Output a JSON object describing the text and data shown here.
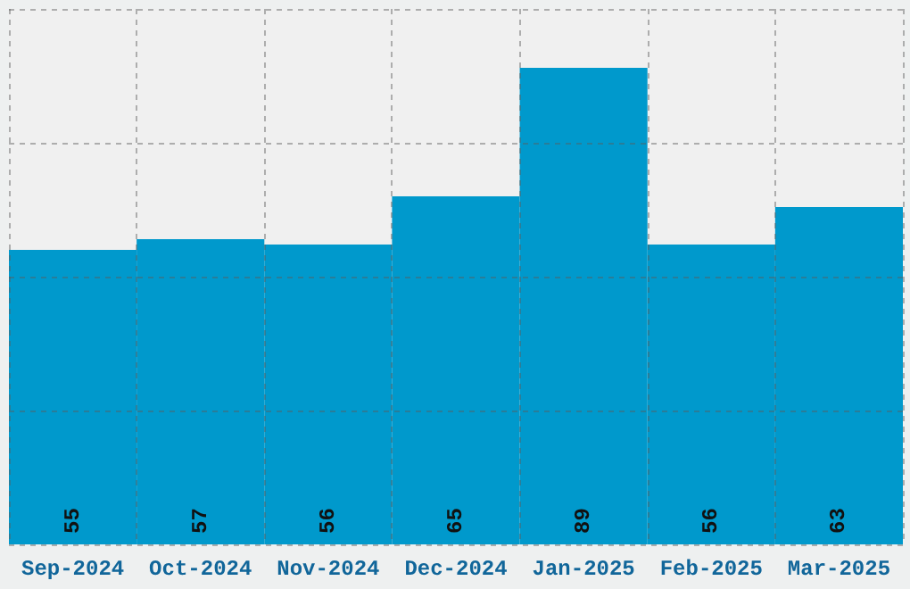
{
  "chart_data": {
    "type": "bar",
    "categories": [
      "Sep-2024",
      "Oct-2024",
      "Nov-2024",
      "Dec-2024",
      "Jan-2025",
      "Feb-2025",
      "Mar-2025"
    ],
    "values": [
      55,
      57,
      56,
      65,
      89,
      56,
      63
    ],
    "color": "#0099cc",
    "ylim": [
      0,
      100
    ],
    "yticks": [
      0,
      25,
      50,
      75,
      100
    ],
    "grid": true,
    "tick_labels": "x",
    "data_labels": true
  }
}
